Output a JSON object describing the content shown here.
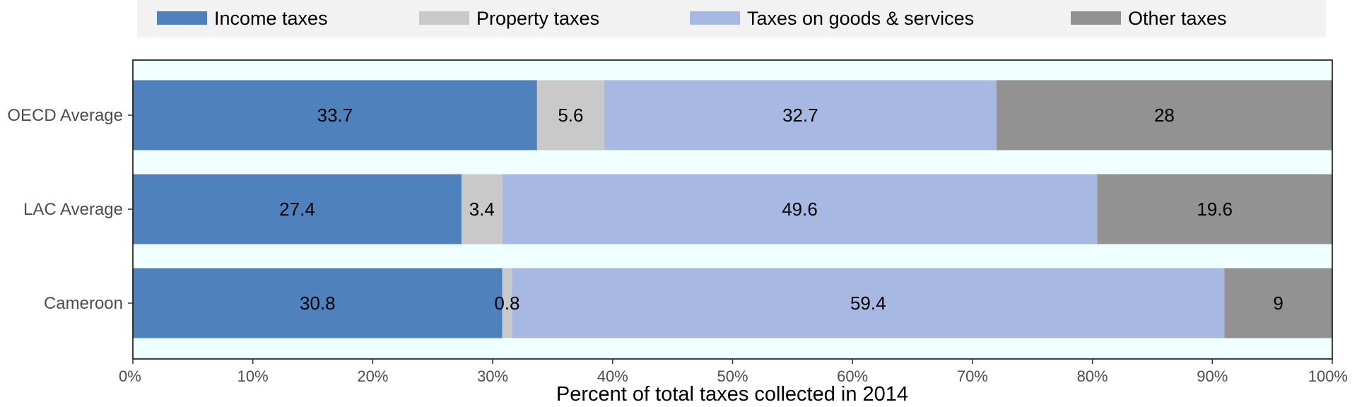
{
  "chart_data": {
    "type": "bar",
    "orientation": "horizontal",
    "stacked": true,
    "categories": [
      "OECD Average",
      "LAC Average",
      "Cameroon"
    ],
    "series": [
      {
        "name": "Income taxes",
        "color": "#4f81bd",
        "values": [
          33.7,
          27.4,
          30.8
        ],
        "labels": [
          "33.7",
          "27.4",
          "30.8"
        ]
      },
      {
        "name": "Property taxes",
        "color": "#c9c9c9",
        "values": [
          5.6,
          3.4,
          0.8
        ],
        "labels": [
          "5.6",
          "3.4",
          "0.8"
        ]
      },
      {
        "name": "Taxes on goods & services",
        "color": "#a7b8e3",
        "values": [
          32.7,
          49.6,
          59.4
        ],
        "labels": [
          "32.7",
          "49.6",
          "59.4"
        ]
      },
      {
        "name": "Other taxes",
        "color": "#929292",
        "values": [
          28,
          19.6,
          9
        ],
        "labels": [
          "28",
          "19.6",
          "9"
        ]
      }
    ],
    "xlabel": "Percent of total taxes collected in 2014",
    "ylabel": "",
    "xlim": [
      0,
      100
    ],
    "x_ticks": [
      0,
      10,
      20,
      30,
      40,
      50,
      60,
      70,
      80,
      90,
      100
    ],
    "x_tick_labels": [
      "0%",
      "10%",
      "20%",
      "30%",
      "40%",
      "50%",
      "60%",
      "70%",
      "80%",
      "90%",
      "100%"
    ],
    "legend_position": "top",
    "plot_background": "#f0ffff",
    "legend_background": "#f2f2f2",
    "grid": false
  }
}
